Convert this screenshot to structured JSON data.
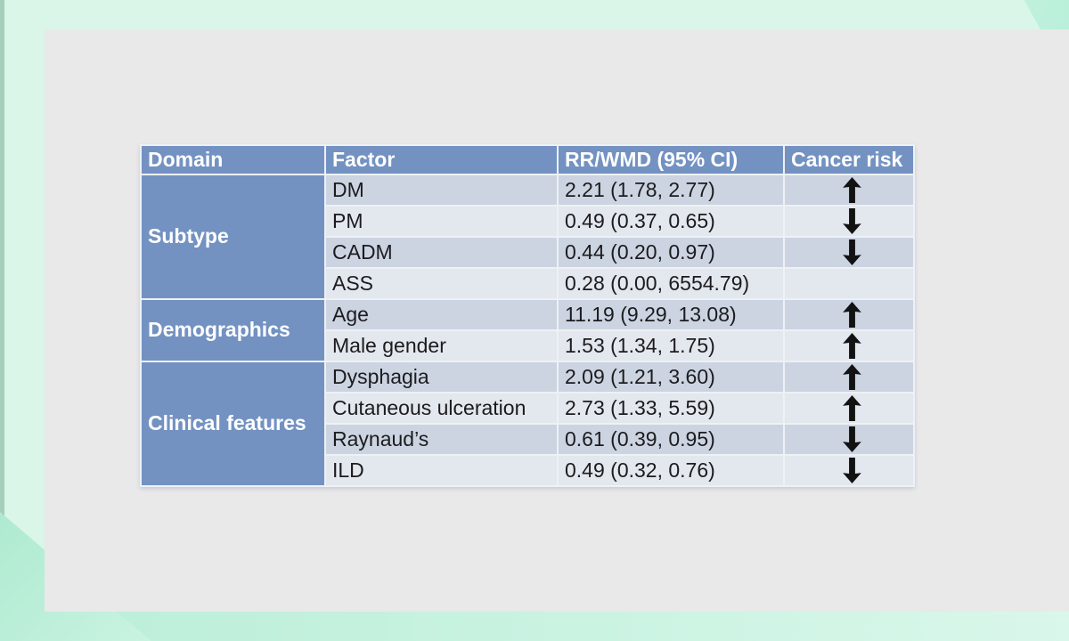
{
  "colors": {
    "background_mint": "#d9f6e8",
    "background_accent": "#b9eed8",
    "slide_bg": "#e9e9ea",
    "header_bg": "#7392c2",
    "domain_bg": "#7392c2",
    "row_dark": "#ccd4e2",
    "row_light": "#e3e7ee",
    "header_text": "#ffffff",
    "body_text": "#1c1c1e",
    "arrow": "#121212"
  },
  "table": {
    "headers": [
      "Domain",
      "Factor",
      "RR/WMD (95% CI)",
      "Cancer risk"
    ],
    "groups": [
      {
        "domain": "Subtype",
        "rows": [
          {
            "factor": "DM",
            "rr": "2.21 (1.78, 2.77)",
            "risk": "up"
          },
          {
            "factor": "PM",
            "rr": "0.49 (0.37, 0.65)",
            "risk": "down"
          },
          {
            "factor": "CADM",
            "rr": "0.44 (0.20, 0.97)",
            "risk": "down"
          },
          {
            "factor": "ASS",
            "rr": "0.28 (0.00, 6554.79)",
            "risk": "none"
          }
        ]
      },
      {
        "domain": "Demographics",
        "rows": [
          {
            "factor": "Age",
            "rr": "11.19 (9.29, 13.08)",
            "risk": "up"
          },
          {
            "factor": "Male gender",
            "rr": "1.53 (1.34, 1.75)",
            "risk": "up"
          }
        ]
      },
      {
        "domain": "Clinical features",
        "rows": [
          {
            "factor": "Dysphagia",
            "rr": "2.09 (1.21, 3.60)",
            "risk": "up"
          },
          {
            "factor": "Cutaneous ulceration",
            "rr": "2.73 (1.33, 5.59)",
            "risk": "up"
          },
          {
            "factor": "Raynaud’s",
            "rr": "0.61 (0.39, 0.95)",
            "risk": "down"
          },
          {
            "factor": "ILD",
            "rr": "0.49 (0.32, 0.76)",
            "risk": "down"
          }
        ]
      }
    ]
  }
}
